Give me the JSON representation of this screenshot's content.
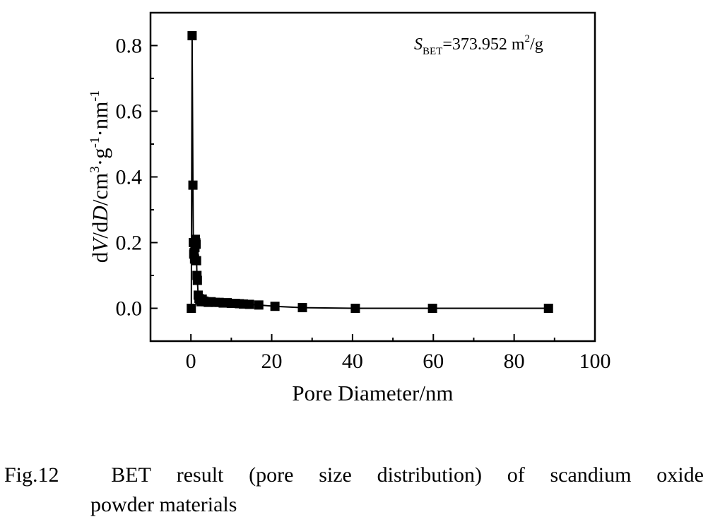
{
  "chart_data": {
    "type": "scatter",
    "xlabel": "Pore Diameter/nm",
    "ylabel_parts": [
      "d",
      "V",
      "/d",
      "D",
      "/cm",
      "3",
      "·g",
      "-1",
      "·nm",
      "-1"
    ],
    "xlim": [
      -10,
      100
    ],
    "ylim": [
      -0.1,
      0.9
    ],
    "xticks": [
      0,
      20,
      40,
      60,
      80,
      100
    ],
    "yticks": [
      0.0,
      0.2,
      0.4,
      0.6,
      0.8
    ],
    "ytick_labels": [
      "0.0",
      "0.2",
      "0.4",
      "0.6",
      "0.8"
    ],
    "annotation": {
      "symbol": "S",
      "subscript": "BET",
      "value": "=373.952 m",
      "sup": "2",
      "unit": "/g"
    },
    "series": [
      {
        "marker": "square",
        "line": true,
        "color": "#000000",
        "x": [
          0.1,
          0.3,
          0.5,
          0.6,
          0.7,
          0.8,
          0.9,
          1.0,
          1.1,
          1.2,
          1.3,
          1.4,
          1.5,
          1.6,
          1.8,
          2.0,
          2.2,
          2.5,
          2.8,
          3.2,
          3.7,
          4.3,
          5.0,
          6.0,
          7.0,
          8.0,
          9.0,
          10.0,
          11.0,
          12.0,
          13.0,
          14.5,
          16.8,
          20.8,
          27.6,
          40.7,
          59.8,
          88.5
        ],
        "y": [
          0.0,
          0.83,
          0.375,
          0.2,
          0.165,
          0.17,
          0.15,
          0.185,
          0.21,
          0.2,
          0.195,
          0.145,
          0.1,
          0.085,
          0.04,
          0.03,
          0.025,
          0.02,
          0.028,
          0.022,
          0.02,
          0.018,
          0.02,
          0.018,
          0.018,
          0.016,
          0.017,
          0.015,
          0.015,
          0.014,
          0.013,
          0.012,
          0.01,
          0.006,
          0.002,
          0.0,
          0.0,
          0.0
        ]
      }
    ]
  },
  "caption": {
    "label": "Fig.12",
    "line1_words": [
      "BET",
      "result",
      "(pore",
      "size",
      "distribution)",
      "of",
      "scandium",
      "oxide"
    ],
    "line2": "powder materials"
  },
  "colors": {
    "axis": "#000000",
    "background": "#ffffff"
  }
}
